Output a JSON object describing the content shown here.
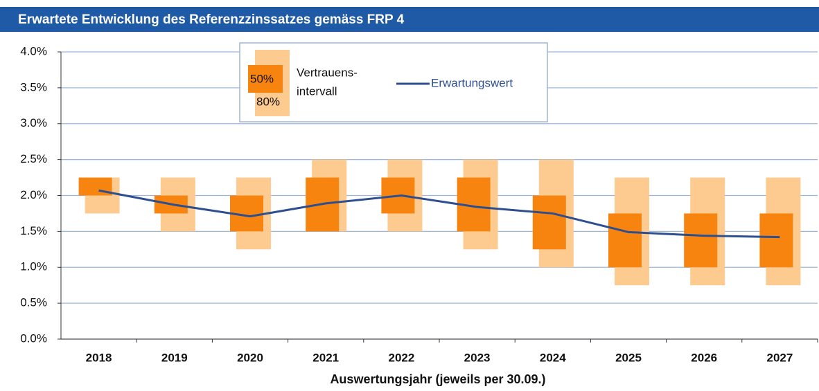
{
  "chart_data": {
    "type": "range-line",
    "title": "Erwartete Entwicklung des Referenzzinssatzes gemäss FRP 4",
    "x_label": "Auswertungsjahr (jeweils per 30.09.)",
    "legend_title": [
      "Vertrauens-",
      "intervall"
    ],
    "categories": [
      "2018",
      "2019",
      "2020",
      "2021",
      "2022",
      "2023",
      "2024",
      "2025",
      "2026",
      "2027"
    ],
    "series": [
      {
        "name": "80%",
        "kind": "range",
        "color": "#fdca8f",
        "low": [
          1.75,
          1.5,
          1.25,
          1.5,
          1.5,
          1.25,
          1.0,
          0.75,
          0.75,
          0.75
        ],
        "high": [
          2.25,
          2.25,
          2.25,
          2.5,
          2.5,
          2.5,
          2.5,
          2.25,
          2.25,
          2.25
        ]
      },
      {
        "name": "50%",
        "kind": "range",
        "color": "#f7840f",
        "low": [
          2.0,
          1.75,
          1.5,
          1.5,
          1.75,
          1.5,
          1.25,
          1.0,
          1.0,
          1.0
        ],
        "high": [
          2.25,
          2.0,
          2.0,
          2.25,
          2.25,
          2.25,
          2.0,
          1.75,
          1.75,
          1.75
        ]
      },
      {
        "name": "Erwartungswert",
        "kind": "line",
        "color": "#2e4f8f",
        "values": [
          2.07,
          1.87,
          1.71,
          1.89,
          2.0,
          1.84,
          1.75,
          1.49,
          1.44,
          1.42
        ]
      }
    ],
    "ylim": [
      0,
      4
    ],
    "yticks": [
      {
        "value": 0,
        "label": "0.0%"
      },
      {
        "value": 0.5,
        "label": "0.5%"
      },
      {
        "value": 1,
        "label": "1.0%"
      },
      {
        "value": 1.5,
        "label": "1.5%"
      },
      {
        "value": 2,
        "label": "2.0%"
      },
      {
        "value": 2.5,
        "label": "2.5%"
      },
      {
        "value": 3,
        "label": "3.0%"
      },
      {
        "value": 3.5,
        "label": "3.5%"
      },
      {
        "value": 4,
        "label": "4.0%"
      }
    ],
    "grid": true
  }
}
